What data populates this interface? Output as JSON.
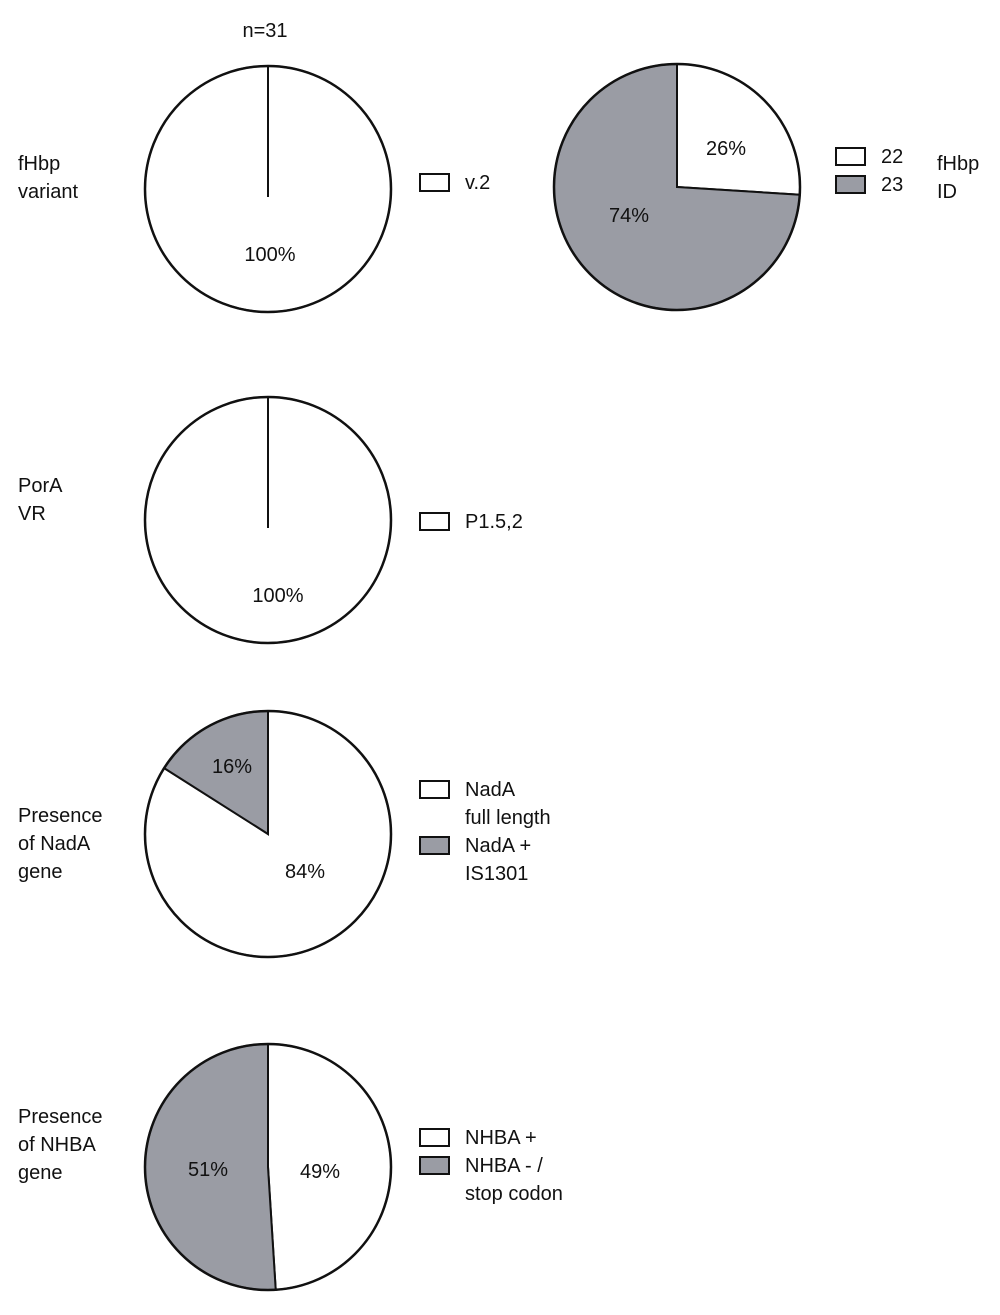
{
  "header": {
    "sample_size": "n=31"
  },
  "colors": {
    "white": "#ffffff",
    "gray": "#9a9ca4",
    "stroke": "#111111"
  },
  "chart_data": [
    {
      "type": "pie",
      "id": "fhbp-variant",
      "row_label": [
        "fHbp",
        "variant"
      ],
      "slices": [
        {
          "value": 100,
          "label": "100%",
          "fill": "white"
        }
      ],
      "legend": [
        {
          "lines": [
            {
              "text": "v.2"
            }
          ],
          "fill": "white"
        }
      ]
    },
    {
      "type": "pie",
      "id": "fhbp-id",
      "side_label": [
        "fHbp",
        "ID"
      ],
      "slices": [
        {
          "value": 26,
          "label": "26%",
          "fill": "white"
        },
        {
          "value": 74,
          "label": "74%",
          "fill": "gray"
        }
      ],
      "legend": [
        {
          "lines": [
            {
              "text": "22"
            }
          ],
          "fill": "white"
        },
        {
          "lines": [
            {
              "text": "23"
            }
          ],
          "fill": "gray"
        }
      ]
    },
    {
      "type": "pie",
      "id": "pora-vr",
      "row_label": [
        "PorA",
        "VR"
      ],
      "slices": [
        {
          "value": 100,
          "label": "100%",
          "fill": "white"
        }
      ],
      "legend": [
        {
          "lines": [
            {
              "text": "P1.5,2"
            }
          ],
          "fill": "white"
        }
      ]
    },
    {
      "type": "pie",
      "id": "nada-gene",
      "row_label": [
        "Presence",
        "of NadA",
        "gene"
      ],
      "slices": [
        {
          "value": 84,
          "label": "84%",
          "fill": "white"
        },
        {
          "value": 16,
          "label": "16%",
          "fill": "gray"
        }
      ],
      "legend": [
        {
          "lines": [
            {
              "text": "NadA"
            },
            {
              "text": "full length"
            }
          ],
          "fill": "white"
        },
        {
          "lines": [
            {
              "text": "NadA +"
            },
            {
              "text": "IS1301",
              "italic": true
            }
          ],
          "fill": "gray"
        }
      ]
    },
    {
      "type": "pie",
      "id": "nhba-gene",
      "row_label": [
        "Presence",
        "of NHBA",
        "gene"
      ],
      "slices": [
        {
          "value": 49,
          "label": "49%",
          "fill": "white"
        },
        {
          "value": 51,
          "label": "51%",
          "fill": "gray"
        }
      ],
      "legend": [
        {
          "lines": [
            {
              "text": "NHBA +"
            }
          ],
          "fill": "white"
        },
        {
          "lines": [
            {
              "text": "NHBA - /"
            },
            {
              "text": "stop codon"
            }
          ],
          "fill": "gray"
        }
      ]
    }
  ]
}
